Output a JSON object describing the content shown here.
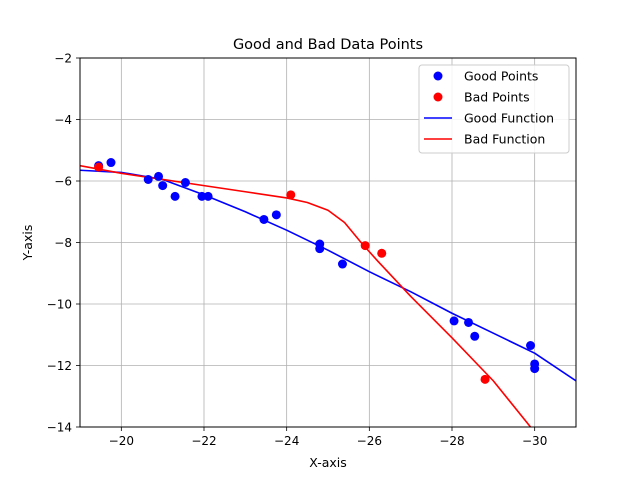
{
  "chart_data": {
    "type": "scatter",
    "title": "Good and Bad Data Points",
    "xlabel": "X-axis",
    "ylabel": "Y-axis",
    "xlim": [
      -19,
      -31
    ],
    "ylim": [
      -14,
      -2
    ],
    "x_ticks": [
      -20,
      -22,
      -24,
      -26,
      -28,
      -30
    ],
    "y_ticks": [
      -14,
      -12,
      -10,
      -8,
      -6,
      -4,
      -2
    ],
    "grid": true,
    "legend_position": "top-right",
    "legend": [
      {
        "label": "Good Points",
        "kind": "marker",
        "color": "#0000ff"
      },
      {
        "label": "Bad Points",
        "kind": "marker",
        "color": "#ff0000"
      },
      {
        "label": "Good Function",
        "kind": "line",
        "color": "#0000ff"
      },
      {
        "label": "Bad Function",
        "kind": "line",
        "color": "#ff0000"
      }
    ],
    "series": [
      {
        "name": "Good Points",
        "type": "scatter",
        "color": "#0000ff",
        "points": [
          [
            -19.45,
            -5.5
          ],
          [
            -19.75,
            -5.4
          ],
          [
            -20.65,
            -5.95
          ],
          [
            -20.9,
            -5.85
          ],
          [
            -21.0,
            -6.15
          ],
          [
            -21.3,
            -6.5
          ],
          [
            -21.55,
            -6.05
          ],
          [
            -21.95,
            -6.5
          ],
          [
            -22.1,
            -6.5
          ],
          [
            -23.45,
            -7.25
          ],
          [
            -23.75,
            -7.1
          ],
          [
            -24.8,
            -8.05
          ],
          [
            -24.8,
            -8.2
          ],
          [
            -25.35,
            -8.7
          ],
          [
            -28.05,
            -10.55
          ],
          [
            -28.4,
            -10.6
          ],
          [
            -28.55,
            -11.05
          ],
          [
            -29.9,
            -11.35
          ],
          [
            -30.0,
            -11.95
          ],
          [
            -30.0,
            -12.1
          ]
        ]
      },
      {
        "name": "Bad Points",
        "type": "scatter",
        "color": "#ff0000",
        "points": [
          [
            -19.45,
            -5.55
          ],
          [
            -24.1,
            -6.45
          ],
          [
            -25.9,
            -8.1
          ],
          [
            -26.3,
            -8.35
          ],
          [
            -28.8,
            -12.45
          ]
        ]
      },
      {
        "name": "Good Function",
        "type": "line",
        "color": "#0000ff",
        "points": [
          [
            -19.0,
            -5.65
          ],
          [
            -20.0,
            -5.72
          ],
          [
            -21.0,
            -5.95
          ],
          [
            -22.0,
            -6.45
          ],
          [
            -23.0,
            -7.0
          ],
          [
            -24.0,
            -7.6
          ],
          [
            -25.0,
            -8.25
          ],
          [
            -26.0,
            -8.95
          ],
          [
            -27.0,
            -9.6
          ],
          [
            -28.0,
            -10.3
          ],
          [
            -29.0,
            -10.95
          ],
          [
            -30.0,
            -11.6
          ],
          [
            -31.0,
            -12.5
          ]
        ]
      },
      {
        "name": "Bad Function",
        "type": "line",
        "color": "#ff0000",
        "points": [
          [
            -19.0,
            -5.5
          ],
          [
            -20.0,
            -5.75
          ],
          [
            -21.0,
            -5.95
          ],
          [
            -22.0,
            -6.15
          ],
          [
            -23.0,
            -6.35
          ],
          [
            -24.0,
            -6.55
          ],
          [
            -24.5,
            -6.7
          ],
          [
            -25.0,
            -6.95
          ],
          [
            -25.4,
            -7.35
          ],
          [
            -25.8,
            -8.0
          ],
          [
            -26.2,
            -8.6
          ],
          [
            -27.0,
            -9.75
          ],
          [
            -28.0,
            -11.1
          ],
          [
            -29.0,
            -12.5
          ],
          [
            -29.9,
            -14.0
          ]
        ]
      }
    ]
  }
}
